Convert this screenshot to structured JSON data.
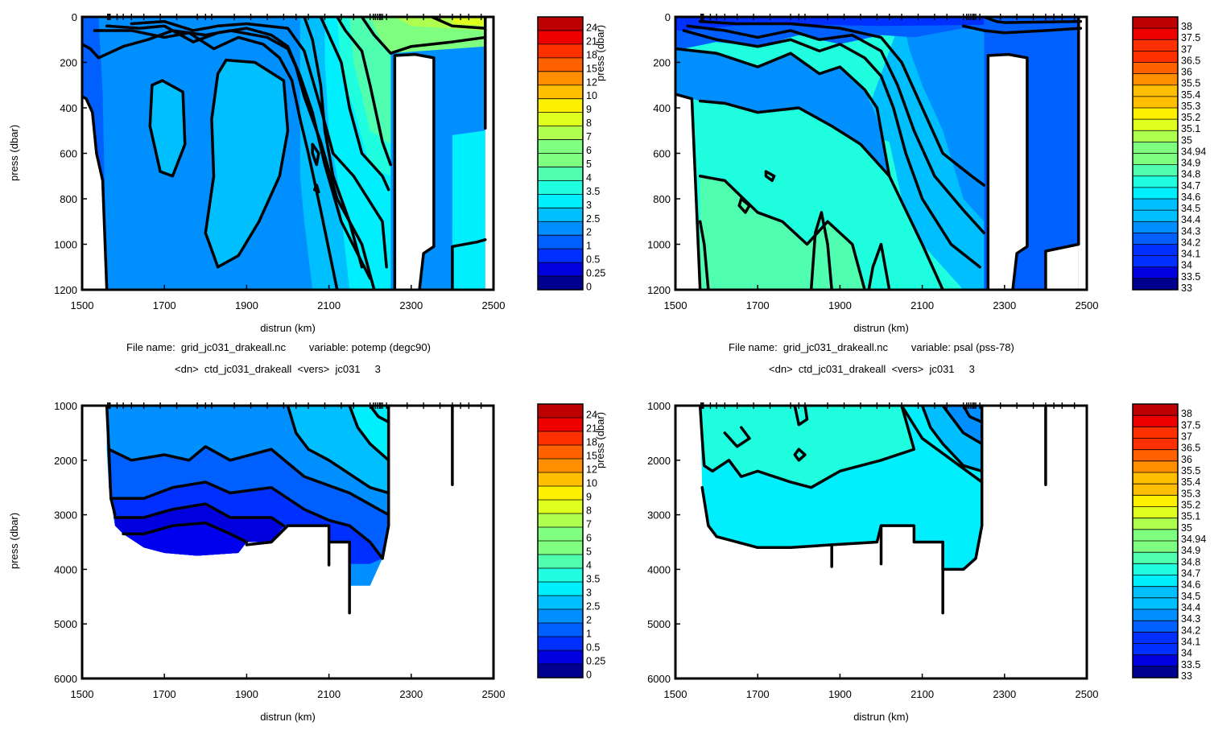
{
  "captions": {
    "file_left": "File name:  grid_jc031_drakeall.nc        variable: potemp (degc90)",
    "dn_left": "<dn>  ctd_jc031_drakeall  <vers>  jc031     3",
    "file_right": "File name:  grid_jc031_drakeall.nc        variable: psal (pss-78)",
    "dn_right": "<dn>  ctd_jc031_drakeall  <vers>  jc031     3"
  },
  "chart_data": [
    {
      "id": "top-left",
      "type": "heatmap",
      "title": "",
      "xlabel": "distrun  (km)",
      "ylabel": "press  (dbar)",
      "colorbar_label": "press  (dbar)",
      "xlim": [
        1500,
        2500
      ],
      "ylim": [
        1200,
        0
      ],
      "xticks": [
        "1500",
        "1700",
        "1900",
        "2100",
        "2300",
        "2500"
      ],
      "yticks": [
        "0",
        "200",
        "400",
        "600",
        "800",
        "1000",
        "1200"
      ],
      "colorbar_ticks": [
        "24",
        "21",
        "18",
        "15",
        "12",
        "10",
        "9",
        "8",
        "7",
        "6",
        "5",
        "4",
        "3.5",
        "3",
        "2.5",
        "2",
        "1",
        "0.5",
        "0.25",
        "0"
      ]
    },
    {
      "id": "top-right",
      "type": "heatmap",
      "title": "",
      "xlabel": "distrun  (km)",
      "ylabel": "",
      "xlim": [
        1500,
        2500
      ],
      "ylim": [
        1200,
        0
      ],
      "xticks": [
        "1500",
        "1700",
        "1900",
        "2100",
        "2300",
        "2500"
      ],
      "yticks": [
        "0",
        "200",
        "400",
        "600",
        "800",
        "1000",
        "1200"
      ],
      "colorbar_ticks": [
        "38",
        "37.5",
        "37",
        "36.5",
        "36",
        "35.5",
        "35.4",
        "35.3",
        "35.2",
        "35.1",
        "35",
        "34.94",
        "34.9",
        "34.8",
        "34.7",
        "34.6",
        "34.5",
        "34.4",
        "34.3",
        "34.2",
        "34.1",
        "34",
        "33.5",
        "33"
      ]
    },
    {
      "id": "bottom-left",
      "type": "heatmap",
      "title": "",
      "xlabel": "distrun  (km)",
      "ylabel": "press  (dbar)",
      "colorbar_label": "press  (dbar)",
      "xlim": [
        1500,
        2500
      ],
      "ylim": [
        6000,
        1000
      ],
      "xticks": [
        "1500",
        "1700",
        "1900",
        "2100",
        "2300",
        "2500"
      ],
      "yticks": [
        "1000",
        "2000",
        "3000",
        "4000",
        "5000",
        "6000"
      ],
      "colorbar_ticks": [
        "24",
        "21",
        "18",
        "15",
        "12",
        "10",
        "9",
        "8",
        "7",
        "6",
        "5",
        "4",
        "3.5",
        "3",
        "2.5",
        "2",
        "1",
        "0.5",
        "0.25",
        "0"
      ]
    },
    {
      "id": "bottom-right",
      "type": "heatmap",
      "title": "",
      "xlabel": "distrun  (km)",
      "ylabel": "",
      "xlim": [
        1500,
        2500
      ],
      "ylim": [
        6000,
        1000
      ],
      "xticks": [
        "1500",
        "1700",
        "1900",
        "2100",
        "2300",
        "2500"
      ],
      "yticks": [
        "1000",
        "2000",
        "3000",
        "4000",
        "5000",
        "6000"
      ],
      "colorbar_ticks": [
        "38",
        "37.5",
        "37",
        "36.5",
        "36",
        "35.5",
        "35.4",
        "35.3",
        "35.2",
        "35.1",
        "35",
        "34.94",
        "34.9",
        "34.8",
        "34.7",
        "34.6",
        "34.5",
        "34.4",
        "34.3",
        "34.2",
        "34.1",
        "34",
        "33.5",
        "33"
      ]
    }
  ],
  "colors": {
    "palette": [
      "#00008f",
      "#0000df",
      "#0030ff",
      "#0060ff",
      "#008fff",
      "#00bfff",
      "#00efff",
      "#1fffdf",
      "#4fffaf",
      "#7fff7f",
      "#afff4f",
      "#dfff1f",
      "#ffef00",
      "#ffbf00",
      "#ff8f00",
      "#ff6000",
      "#ff3000",
      "#ef0000",
      "#bf0000"
    ],
    "station_ticks": [
      1562,
      1565,
      1568,
      1585,
      1600,
      1620,
      1650,
      1690,
      1730,
      1780,
      1800,
      1815,
      1870,
      1910,
      1950,
      1990,
      2020,
      2050,
      2090,
      2130,
      2160,
      2200,
      2208,
      2213,
      2218,
      2223,
      2226,
      2230,
      2240,
      2290,
      2330,
      2370,
      2400,
      2420,
      2440,
      2470
    ]
  }
}
